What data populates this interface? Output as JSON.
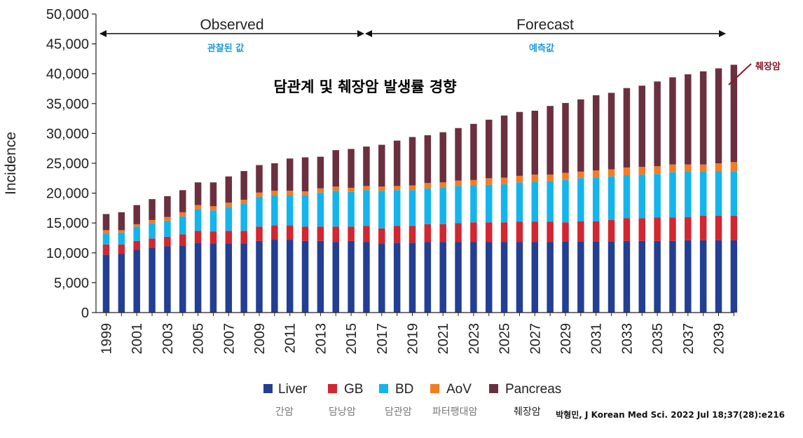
{
  "chart_data": {
    "type": "stacked-bar",
    "title": "담관계 및 췌장암 발생률 경향",
    "ylabel": "Incidence",
    "xlabel": "",
    "ylim": [
      0,
      50000
    ],
    "yticks": [
      "0",
      "5,000",
      "10,000",
      "15,000",
      "20,000",
      "25,000",
      "30,000",
      "35,000",
      "40,000",
      "45,000",
      "50,000"
    ],
    "categories": [
      "1999",
      "2000",
      "2001",
      "2002",
      "2003",
      "2004",
      "2005",
      "2006",
      "2007",
      "2008",
      "2009",
      "2010",
      "2011",
      "2012",
      "2013",
      "2014",
      "2015",
      "2016",
      "2017",
      "2018",
      "2019",
      "2020",
      "2021",
      "2022",
      "2023",
      "2024",
      "2025",
      "2026",
      "2027",
      "2028",
      "2029",
      "2030",
      "2031",
      "2032",
      "2033",
      "2034",
      "2035",
      "2036",
      "2037",
      "2038",
      "2039",
      "2040"
    ],
    "xtick_labels": [
      "1999",
      "2001",
      "2003",
      "2005",
      "2007",
      "2009",
      "2011",
      "2013",
      "2015",
      "2017",
      "2019",
      "2021",
      "2023",
      "2025",
      "2027",
      "2029",
      "2031",
      "2033",
      "2035",
      "2037",
      "2039"
    ],
    "series": [
      {
        "name": "Liver",
        "name_kr": "간암",
        "color": "#233f94",
        "values": [
          9700,
          9800,
          10500,
          10900,
          11100,
          11200,
          11700,
          11600,
          11600,
          11600,
          12000,
          12200,
          12200,
          12000,
          12000,
          11800,
          12000,
          11800,
          11600,
          11700,
          11700,
          11800,
          11800,
          11800,
          11800,
          11800,
          11800,
          11800,
          11800,
          11800,
          11900,
          11900,
          11900,
          11900,
          12000,
          12000,
          12000,
          12000,
          12100,
          12100,
          12100,
          12100
        ]
      },
      {
        "name": "GB",
        "name_kr": "담낭암",
        "color": "#d22630",
        "values": [
          1700,
          1600,
          1500,
          1500,
          1600,
          1900,
          2000,
          2000,
          2100,
          2100,
          2400,
          2400,
          2400,
          2400,
          2400,
          2600,
          2400,
          2700,
          2500,
          2800,
          2800,
          3000,
          3000,
          3200,
          3300,
          3300,
          3300,
          3400,
          3400,
          3400,
          3200,
          3400,
          3400,
          3600,
          3800,
          3800,
          3900,
          3900,
          3900,
          4100,
          4100,
          4100
        ]
      },
      {
        "name": "BD",
        "name_kr": "담관암",
        "color": "#14b4ec",
        "values": [
          1800,
          2000,
          2400,
          2600,
          2700,
          3000,
          3600,
          3500,
          4000,
          4500,
          5000,
          5000,
          5000,
          5300,
          5700,
          6000,
          5800,
          6000,
          6300,
          6000,
          6000,
          6000,
          6100,
          6200,
          6200,
          6300,
          6400,
          6600,
          6700,
          6800,
          7100,
          7200,
          7300,
          7300,
          7200,
          7300,
          7300,
          7600,
          7600,
          7400,
          7500,
          7400
        ]
      },
      {
        "name": "AoV",
        "name_kr": "파터팽대암",
        "color": "#f47c25",
        "values": [
          600,
          400,
          400,
          500,
          600,
          700,
          700,
          700,
          700,
          700,
          700,
          800,
          800,
          600,
          700,
          700,
          700,
          700,
          700,
          700,
          800,
          900,
          900,
          900,
          900,
          1100,
          1100,
          1100,
          1200,
          1100,
          1200,
          1100,
          1200,
          1200,
          1300,
          1300,
          1300,
          1300,
          1200,
          1200,
          1300,
          1600
        ]
      },
      {
        "name": "Pancreas",
        "name_kr": "췌장암",
        "color": "#6b3040",
        "values": [
          2700,
          3000,
          3200,
          3500,
          3500,
          3700,
          3800,
          4000,
          4400,
          4800,
          4600,
          4600,
          5400,
          5700,
          5300,
          6100,
          6500,
          6600,
          7000,
          7600,
          8100,
          8000,
          8400,
          8800,
          9400,
          9800,
          10400,
          10700,
          10700,
          11500,
          11700,
          12100,
          12600,
          12800,
          13300,
          13600,
          14200,
          14600,
          15100,
          15600,
          15900,
          16300
        ]
      }
    ],
    "periods": [
      {
        "label": "Observed",
        "label_kr": "관찰된 값"
      },
      {
        "label": "Forecast",
        "label_kr": "예측값"
      }
    ],
    "annotation": "췌장암",
    "legend_position": "bottom",
    "source": "박형민,  J Korean Med Sci. 2022 Jul 18;37(28):e216"
  }
}
